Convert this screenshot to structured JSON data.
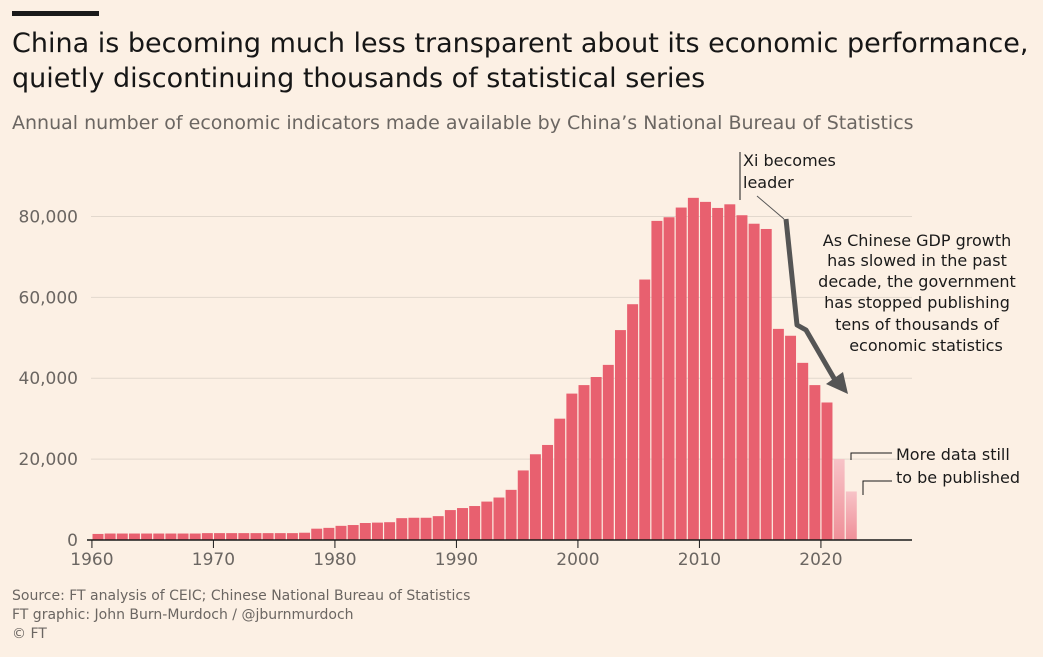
{
  "header": {
    "title": "China is becoming much less transparent about its economic performance, quietly discontinuing thousands of statistical series",
    "subtitle": "Annual number of economic indicators made available by China’s National Bureau of Statistics"
  },
  "footer": {
    "source": "Source: FT analysis of CEIC; Chinese National Bureau of Statistics",
    "graphic": "FT graphic: John Burn-Murdoch / @jburnmurdoch",
    "copyright": "© FT"
  },
  "colors": {
    "bar": "#e8606f",
    "bar_provisional": "#f4b0b6",
    "grid": "#e2d8cd",
    "axis": "#1a1a1a",
    "arrow": "#555555"
  },
  "chart_data": {
    "type": "bar",
    "title": "China is becoming much less transparent about its economic performance, quietly discontinuing thousands of statistical series",
    "subtitle": "Annual number of economic indicators made available by China’s National Bureau of Statistics",
    "xlabel": "",
    "ylabel": "",
    "xlim": [
      1960,
      2026
    ],
    "ylim": [
      0,
      90000
    ],
    "grid": true,
    "yticks": [
      0,
      20000,
      40000,
      60000,
      80000
    ],
    "ytick_labels": [
      "0",
      "20,000",
      "40,000",
      "60,000",
      "80,000"
    ],
    "xticks": [
      1960,
      1970,
      1980,
      1990,
      2000,
      2010,
      2020
    ],
    "xtick_labels": [
      "1960",
      "1970",
      "1980",
      "1990",
      "2000",
      "2010",
      "2020"
    ],
    "years": [
      1960,
      1961,
      1962,
      1963,
      1964,
      1965,
      1966,
      1967,
      1968,
      1969,
      1970,
      1971,
      1972,
      1973,
      1974,
      1975,
      1976,
      1977,
      1978,
      1979,
      1980,
      1981,
      1982,
      1983,
      1984,
      1985,
      1986,
      1987,
      1988,
      1989,
      1990,
      1991,
      1992,
      1993,
      1994,
      1995,
      1996,
      1997,
      1998,
      1999,
      2000,
      2001,
      2002,
      2003,
      2004,
      2005,
      2006,
      2007,
      2008,
      2009,
      2010,
      2011,
      2012,
      2013,
      2014,
      2015,
      2016,
      2017,
      2018,
      2019,
      2020,
      2021,
      2022
    ],
    "values": [
      1500,
      1600,
      1600,
      1600,
      1600,
      1600,
      1600,
      1600,
      1600,
      1700,
      1700,
      1700,
      1700,
      1700,
      1700,
      1700,
      1700,
      1800,
      2800,
      3000,
      3500,
      3700,
      4200,
      4300,
      4400,
      5400,
      5500,
      5500,
      5900,
      7400,
      7900,
      8400,
      9500,
      10500,
      12400,
      17200,
      21200,
      23500,
      30000,
      36200,
      38300,
      40300,
      43300,
      51900,
      58300,
      64400,
      78900,
      79800,
      82200,
      84600,
      83600,
      82100,
      83000,
      80300,
      78200,
      76900,
      52200,
      50500,
      43800,
      38300,
      34000,
      20000,
      12000
    ],
    "provisional_from": 2021,
    "annotations": [
      {
        "text": "Xi becomes leader",
        "year": 2012
      },
      {
        "text": "As Chinese GDP growth has slowed in the past decade, the government has stopped publishing tens of thousands of economic statistics"
      },
      {
        "text": "More data still to be published",
        "years": [
          2021,
          2022
        ]
      }
    ]
  },
  "annotations_text": {
    "xi_line1": "Xi becomes",
    "xi_line2": "leader",
    "gdp_line1": "As Chinese GDP growth",
    "gdp_line2": "has slowed in the past",
    "gdp_line3": "decade, the government",
    "gdp_line4": "has stopped publishing",
    "gdp_line5": "tens of thousands of",
    "gdp_line6": "economic statistics",
    "more_line1": "More data still",
    "more_line2": "to be published"
  }
}
